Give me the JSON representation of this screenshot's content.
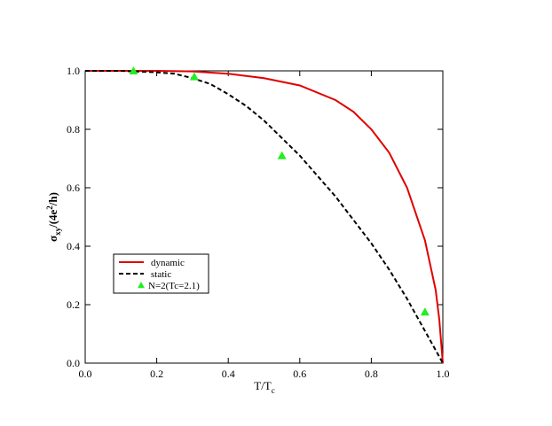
{
  "chart_data": {
    "type": "line",
    "x_label": [
      "T/T",
      "c"
    ],
    "y_label": [
      "σ",
      "xy",
      "/(4e",
      "2",
      "/h)"
    ],
    "xlim": [
      0,
      1
    ],
    "ylim": [
      0,
      1
    ],
    "xticks": [
      {
        "value": 0,
        "label": "0.0"
      },
      0.2,
      0.4,
      0.6,
      0.8,
      {
        "value": 1,
        "label": "1.0"
      }
    ],
    "yticks": [
      {
        "value": 0,
        "label": "0.0"
      },
      0.2,
      0.4,
      0.6,
      0.8,
      {
        "value": 1,
        "label": "1.0"
      }
    ],
    "series": [
      {
        "name": "dynamic",
        "color": "#e00000",
        "style": "solid",
        "x": [
          0,
          0.1,
          0.2,
          0.3,
          0.4,
          0.5,
          0.6,
          0.7,
          0.75,
          0.8,
          0.85,
          0.9,
          0.95,
          0.98,
          0.99,
          1.0
        ],
        "values": [
          1,
          1,
          1,
          0.998,
          0.99,
          0.975,
          0.95,
          0.9,
          0.86,
          0.8,
          0.72,
          0.6,
          0.42,
          0.25,
          0.15,
          0
        ]
      },
      {
        "name": "static",
        "color": "#000000",
        "style": "dashed",
        "x": [
          0,
          0.1,
          0.2,
          0.25,
          0.3,
          0.35,
          0.4,
          0.45,
          0.5,
          0.55,
          0.6,
          0.65,
          0.7,
          0.75,
          0.8,
          0.85,
          0.9,
          0.95,
          1.0
        ],
        "values": [
          1,
          1,
          0.995,
          0.99,
          0.975,
          0.955,
          0.92,
          0.88,
          0.83,
          0.77,
          0.71,
          0.64,
          0.57,
          0.49,
          0.41,
          0.32,
          0.22,
          0.11,
          0
        ]
      },
      {
        "name": "N=2(Tc=2.1)",
        "color": "#22ee22",
        "style": "triangle",
        "x": [
          0.135,
          0.305,
          0.55,
          0.95
        ],
        "values": [
          1.0,
          0.98,
          0.71,
          0.175
        ]
      }
    ]
  }
}
